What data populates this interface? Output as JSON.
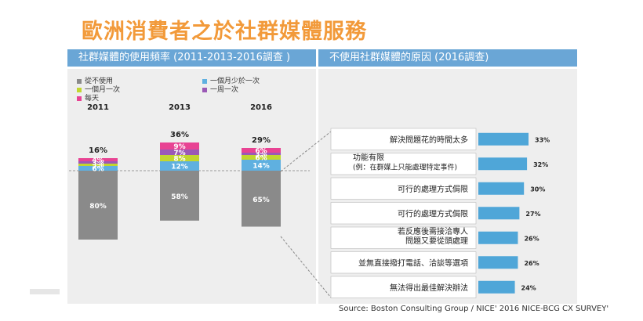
{
  "title": "歐洲消費者之於社群媒體服務",
  "left_header": "社群媒體的使用頻率 (2011-2013-2016調查 )",
  "right_header": "不使用社群媒體的原因 (2016調查)",
  "legend": [
    {
      "label": "從不使用",
      "color": "#8a8a8a"
    },
    {
      "label": "一個月少於一次",
      "color": "#5fb0e0"
    },
    {
      "label": "一個月一次",
      "color": "#c2d62e"
    },
    {
      "label": "一周一次",
      "color": "#9b59b6"
    },
    {
      "label": "每天",
      "color": "#e84393"
    }
  ],
  "source": "Source: Boston Consulting Group / NICE' 2016 NICE-BCG CX SURVEY'",
  "chart_data": [
    {
      "type": "bar",
      "stacked": true,
      "categories": [
        "2011",
        "2013",
        "2016"
      ],
      "totals_above": [
        "16%",
        "36%",
        "29%"
      ],
      "series": [
        {
          "name": "從不使用",
          "values": [
            80,
            58,
            65
          ]
        },
        {
          "name": "一個月少於一次",
          "values": [
            6,
            12,
            14
          ]
        },
        {
          "name": "一個月一次",
          "values": [
            3,
            8,
            6
          ]
        },
        {
          "name": "一周一次",
          "values": [
            3,
            7,
            3
          ]
        },
        {
          "name": "每天",
          "values": [
            4,
            9,
            6
          ]
        }
      ]
    },
    {
      "type": "bar",
      "orientation": "horizontal",
      "categories": [
        [
          "解決問題花的時間太多"
        ],
        [
          "功能有限",
          "(例：在群媒上只能處理特定事件)"
        ],
        [
          "可行的處理方式侷限"
        ],
        [
          "可行的處理方式侷限"
        ],
        [
          "若反應後需接洽專人",
          "問題又要從頭處理"
        ],
        [
          "並無直接撥打電話、洽談等選項"
        ],
        [
          "無法得出最佳解決辦法"
        ]
      ],
      "values": [
        33,
        32,
        30,
        27,
        26,
        26,
        24
      ]
    }
  ]
}
